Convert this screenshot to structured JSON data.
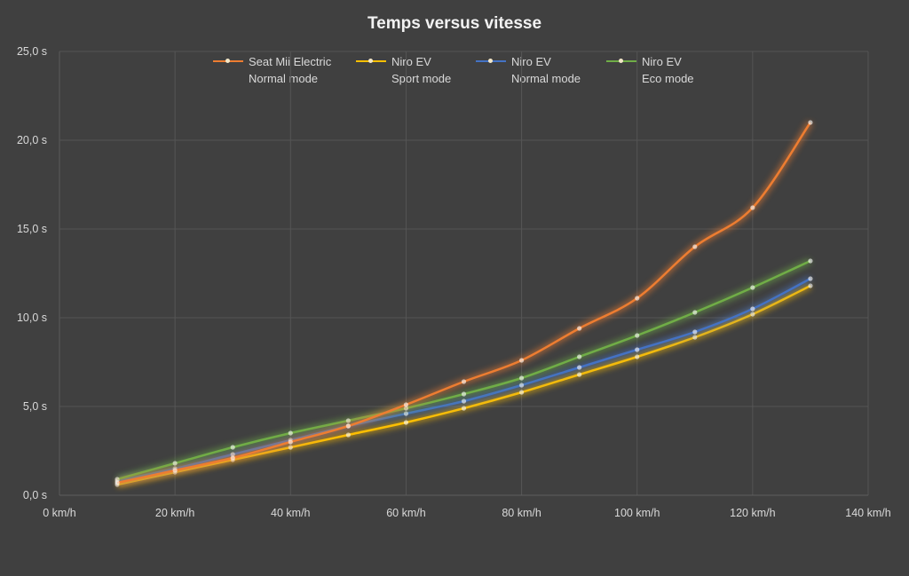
{
  "chart_data": {
    "type": "line",
    "title": "Temps versus vitesse",
    "xlabel": "",
    "ylabel": "",
    "xlim": [
      0,
      140
    ],
    "ylim": [
      0,
      25
    ],
    "x_ticks": [
      "0 km/h",
      "20 km/h",
      "40 km/h",
      "60 km/h",
      "80 km/h",
      "100 km/h",
      "120 km/h",
      "140 km/h"
    ],
    "y_ticks": [
      "0,0 s",
      "5,0 s",
      "10,0 s",
      "15,0 s",
      "20,0 s",
      "25,0 s"
    ],
    "grid": true,
    "legend_position": "top",
    "x": [
      10,
      20,
      30,
      40,
      50,
      60,
      70,
      80,
      90,
      100,
      110,
      120,
      130
    ],
    "series": [
      {
        "name": "Seat Mii Electric",
        "sub": "Normal mode",
        "color": "#ed7d31",
        "values": [
          0.7,
          1.4,
          2.1,
          3.0,
          3.9,
          5.1,
          6.4,
          7.6,
          9.4,
          11.1,
          14.0,
          16.2,
          21.0
        ]
      },
      {
        "name": "Niro EV",
        "sub": "Sport mode",
        "color": "#ffc000",
        "values": [
          0.6,
          1.3,
          2.0,
          2.7,
          3.4,
          4.1,
          4.9,
          5.8,
          6.8,
          7.8,
          8.9,
          10.2,
          11.8
        ]
      },
      {
        "name": "Niro EV",
        "sub": "Normal mode",
        "color": "#4472c4",
        "values": [
          0.8,
          1.5,
          2.3,
          3.1,
          3.9,
          4.6,
          5.3,
          6.2,
          7.2,
          8.2,
          9.2,
          10.5,
          12.2
        ]
      },
      {
        "name": "Niro EV",
        "sub": "Eco mode",
        "color": "#70ad47",
        "values": [
          0.9,
          1.8,
          2.7,
          3.5,
          4.2,
          4.9,
          5.7,
          6.6,
          7.8,
          9.0,
          10.3,
          11.7,
          13.2
        ]
      }
    ]
  }
}
